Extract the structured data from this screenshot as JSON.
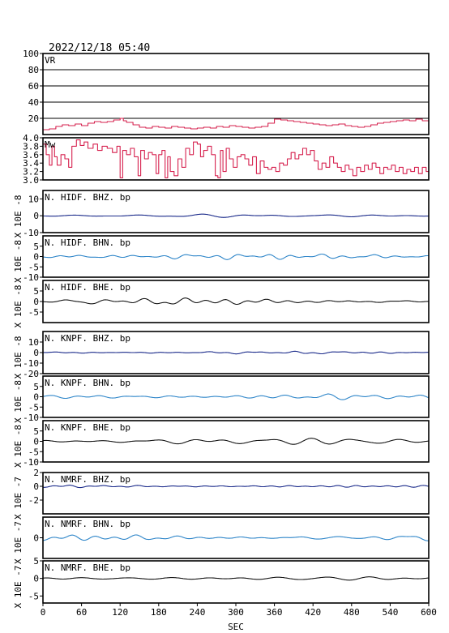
{
  "chart_data": {
    "type": "line",
    "title": "2022/12/18 05:40",
    "xlabel": "SEC",
    "xlim": [
      0,
      600
    ],
    "xticks": [
      0,
      60,
      120,
      180,
      240,
      300,
      360,
      420,
      480,
      540,
      600
    ],
    "panels": [
      {
        "label": "VR",
        "unit": "",
        "ylim": [
          0,
          100
        ],
        "yticks": [
          20,
          40,
          60,
          80,
          100
        ],
        "grid": true,
        "color": "#d6204e",
        "style": "step",
        "points": [
          [
            0,
            6
          ],
          [
            10,
            7
          ],
          [
            20,
            10
          ],
          [
            30,
            12
          ],
          [
            40,
            11
          ],
          [
            50,
            13
          ],
          [
            60,
            11
          ],
          [
            70,
            14
          ],
          [
            80,
            16
          ],
          [
            90,
            15
          ],
          [
            100,
            16
          ],
          [
            110,
            18
          ],
          [
            120,
            20
          ],
          [
            125,
            17
          ],
          [
            130,
            15
          ],
          [
            140,
            12
          ],
          [
            150,
            9
          ],
          [
            160,
            8
          ],
          [
            170,
            10
          ],
          [
            180,
            9
          ],
          [
            190,
            8
          ],
          [
            200,
            10
          ],
          [
            210,
            9
          ],
          [
            220,
            8
          ],
          [
            230,
            7
          ],
          [
            240,
            8
          ],
          [
            250,
            9
          ],
          [
            260,
            8
          ],
          [
            270,
            10
          ],
          [
            280,
            9
          ],
          [
            290,
            11
          ],
          [
            300,
            10
          ],
          [
            310,
            9
          ],
          [
            320,
            8
          ],
          [
            330,
            9
          ],
          [
            340,
            10
          ],
          [
            350,
            14
          ],
          [
            360,
            19
          ],
          [
            370,
            18
          ],
          [
            380,
            17
          ],
          [
            390,
            16
          ],
          [
            400,
            15
          ],
          [
            410,
            14
          ],
          [
            420,
            13
          ],
          [
            430,
            12
          ],
          [
            440,
            11
          ],
          [
            450,
            12
          ],
          [
            460,
            13
          ],
          [
            470,
            11
          ],
          [
            480,
            10
          ],
          [
            490,
            9
          ],
          [
            500,
            10
          ],
          [
            510,
            12
          ],
          [
            520,
            14
          ],
          [
            530,
            15
          ],
          [
            540,
            16
          ],
          [
            550,
            17
          ],
          [
            560,
            18
          ],
          [
            570,
            17
          ],
          [
            580,
            19
          ],
          [
            590,
            17
          ],
          [
            600,
            16
          ]
        ]
      },
      {
        "label": "Mw",
        "unit": "",
        "ylim": [
          3.0,
          4.0
        ],
        "yticks": [
          3.0,
          3.2,
          3.4,
          3.6,
          3.8,
          4.0
        ],
        "tick_labels": [
          "3.0",
          "3.2",
          "3.4",
          "3.6",
          "3.8",
          "4.0"
        ],
        "grid": false,
        "color": "#d6204e",
        "style": "step",
        "points": [
          [
            0,
            3.85
          ],
          [
            5,
            3.6
          ],
          [
            10,
            3.35
          ],
          [
            14,
            3.8
          ],
          [
            18,
            3.55
          ],
          [
            22,
            3.35
          ],
          [
            28,
            3.6
          ],
          [
            34,
            3.5
          ],
          [
            40,
            3.3
          ],
          [
            45,
            3.8
          ],
          [
            52,
            3.95
          ],
          [
            58,
            3.82
          ],
          [
            64,
            3.9
          ],
          [
            70,
            3.75
          ],
          [
            78,
            3.85
          ],
          [
            85,
            3.7
          ],
          [
            92,
            3.8
          ],
          [
            100,
            3.75
          ],
          [
            108,
            3.65
          ],
          [
            115,
            3.8
          ],
          [
            120,
            3.05
          ],
          [
            124,
            3.7
          ],
          [
            130,
            3.6
          ],
          [
            136,
            3.75
          ],
          [
            142,
            3.55
          ],
          [
            148,
            3.1
          ],
          [
            152,
            3.7
          ],
          [
            158,
            3.5
          ],
          [
            164,
            3.65
          ],
          [
            170,
            3.6
          ],
          [
            176,
            3.15
          ],
          [
            180,
            3.6
          ],
          [
            185,
            3.7
          ],
          [
            190,
            3.05
          ],
          [
            194,
            3.55
          ],
          [
            198,
            3.2
          ],
          [
            204,
            3.1
          ],
          [
            210,
            3.5
          ],
          [
            216,
            3.3
          ],
          [
            222,
            3.75
          ],
          [
            228,
            3.6
          ],
          [
            234,
            3.9
          ],
          [
            240,
            3.85
          ],
          [
            245,
            3.55
          ],
          [
            250,
            3.7
          ],
          [
            256,
            3.8
          ],
          [
            262,
            3.6
          ],
          [
            268,
            3.1
          ],
          [
            272,
            3.05
          ],
          [
            276,
            3.7
          ],
          [
            280,
            3.2
          ],
          [
            285,
            3.75
          ],
          [
            290,
            3.5
          ],
          [
            296,
            3.3
          ],
          [
            302,
            3.55
          ],
          [
            308,
            3.6
          ],
          [
            314,
            3.5
          ],
          [
            320,
            3.35
          ],
          [
            326,
            3.55
          ],
          [
            332,
            3.15
          ],
          [
            338,
            3.45
          ],
          [
            344,
            3.3
          ],
          [
            350,
            3.25
          ],
          [
            356,
            3.3
          ],
          [
            362,
            3.2
          ],
          [
            368,
            3.4
          ],
          [
            374,
            3.35
          ],
          [
            380,
            3.5
          ],
          [
            386,
            3.65
          ],
          [
            392,
            3.5
          ],
          [
            398,
            3.6
          ],
          [
            404,
            3.75
          ],
          [
            410,
            3.6
          ],
          [
            416,
            3.7
          ],
          [
            422,
            3.45
          ],
          [
            428,
            3.25
          ],
          [
            434,
            3.4
          ],
          [
            440,
            3.3
          ],
          [
            446,
            3.55
          ],
          [
            452,
            3.4
          ],
          [
            458,
            3.3
          ],
          [
            464,
            3.2
          ],
          [
            470,
            3.35
          ],
          [
            476,
            3.25
          ],
          [
            482,
            3.1
          ],
          [
            488,
            3.3
          ],
          [
            494,
            3.2
          ],
          [
            500,
            3.35
          ],
          [
            506,
            3.25
          ],
          [
            512,
            3.4
          ],
          [
            518,
            3.3
          ],
          [
            524,
            3.15
          ],
          [
            530,
            3.3
          ],
          [
            536,
            3.25
          ],
          [
            542,
            3.35
          ],
          [
            548,
            3.2
          ],
          [
            554,
            3.3
          ],
          [
            560,
            3.15
          ],
          [
            566,
            3.25
          ],
          [
            572,
            3.2
          ],
          [
            578,
            3.3
          ],
          [
            584,
            3.15
          ],
          [
            590,
            3.3
          ],
          [
            596,
            3.2
          ],
          [
            600,
            3.25
          ]
        ]
      },
      {
        "label": "N. HIDF. BHZ. bp",
        "unit": "X 10E -8",
        "ylim": [
          -10,
          15
        ],
        "yticks": [
          -10,
          0,
          10
        ],
        "grid": false,
        "color": "#1a2a8a",
        "style": "wave",
        "amp": 0.8,
        "seed": 11
      },
      {
        "label": "N. HIDF. BHN. bp",
        "unit": "X 10E -8",
        "ylim": [
          -10,
          10
        ],
        "yticks": [
          -10,
          -5,
          0,
          5
        ],
        "grid": false,
        "color": "#2f86c9",
        "style": "wave",
        "amp": 1.5,
        "seed": 23
      },
      {
        "label": "N. HIDF. BHE. bp",
        "unit": "X 10E -8",
        "ylim": [
          -10,
          10
        ],
        "yticks": [
          -5,
          0,
          5
        ],
        "grid": false,
        "color": "#161616",
        "style": "wave",
        "amp": 1.5,
        "seed": 37
      },
      {
        "label": "N. KNPF. BHZ. bp",
        "unit": "X 10E -8",
        "ylim": [
          -20,
          20
        ],
        "yticks": [
          -20,
          -10,
          0,
          10
        ],
        "grid": false,
        "color": "#1a2a8a",
        "style": "wave",
        "amp": 1.0,
        "seed": 41
      },
      {
        "label": "N. KNPF. BHN. bp",
        "unit": "X 10E -8",
        "ylim": [
          -10,
          10
        ],
        "yticks": [
          -10,
          -5,
          0,
          5
        ],
        "grid": false,
        "color": "#2f86c9",
        "style": "wave",
        "amp": 1.2,
        "seed": 53
      },
      {
        "label": "N. KNPF. BHE. bp",
        "unit": "X 10E -8",
        "ylim": [
          -10,
          10
        ],
        "yticks": [
          -10,
          -5,
          0,
          5
        ],
        "grid": false,
        "color": "#161616",
        "style": "wave",
        "amp": 1.5,
        "seed": 67
      },
      {
        "label": "N. NMRF. BHZ. bp",
        "unit": "X 10E -7",
        "ylim": [
          -4,
          2
        ],
        "yticks": [
          -2,
          0,
          2
        ],
        "grid": false,
        "color": "#1a2a8a",
        "style": "wave",
        "amp": 0.15,
        "seed": 71
      },
      {
        "label": "N. NMRF. BHN. bp",
        "unit": "X 10E -7",
        "ylim": [
          -5,
          5
        ],
        "yticks": [
          0
        ],
        "grid": false,
        "color": "#2f86c9",
        "style": "wave",
        "amp": 0.5,
        "seed": 83
      },
      {
        "label": "N. NMRF. BHE. bp",
        "unit": "X 10E -7",
        "ylim": [
          -7,
          5
        ],
        "yticks": [
          -5,
          0,
          5
        ],
        "grid": false,
        "color": "#161616",
        "style": "wave",
        "amp": 0.6,
        "seed": 97
      }
    ]
  }
}
